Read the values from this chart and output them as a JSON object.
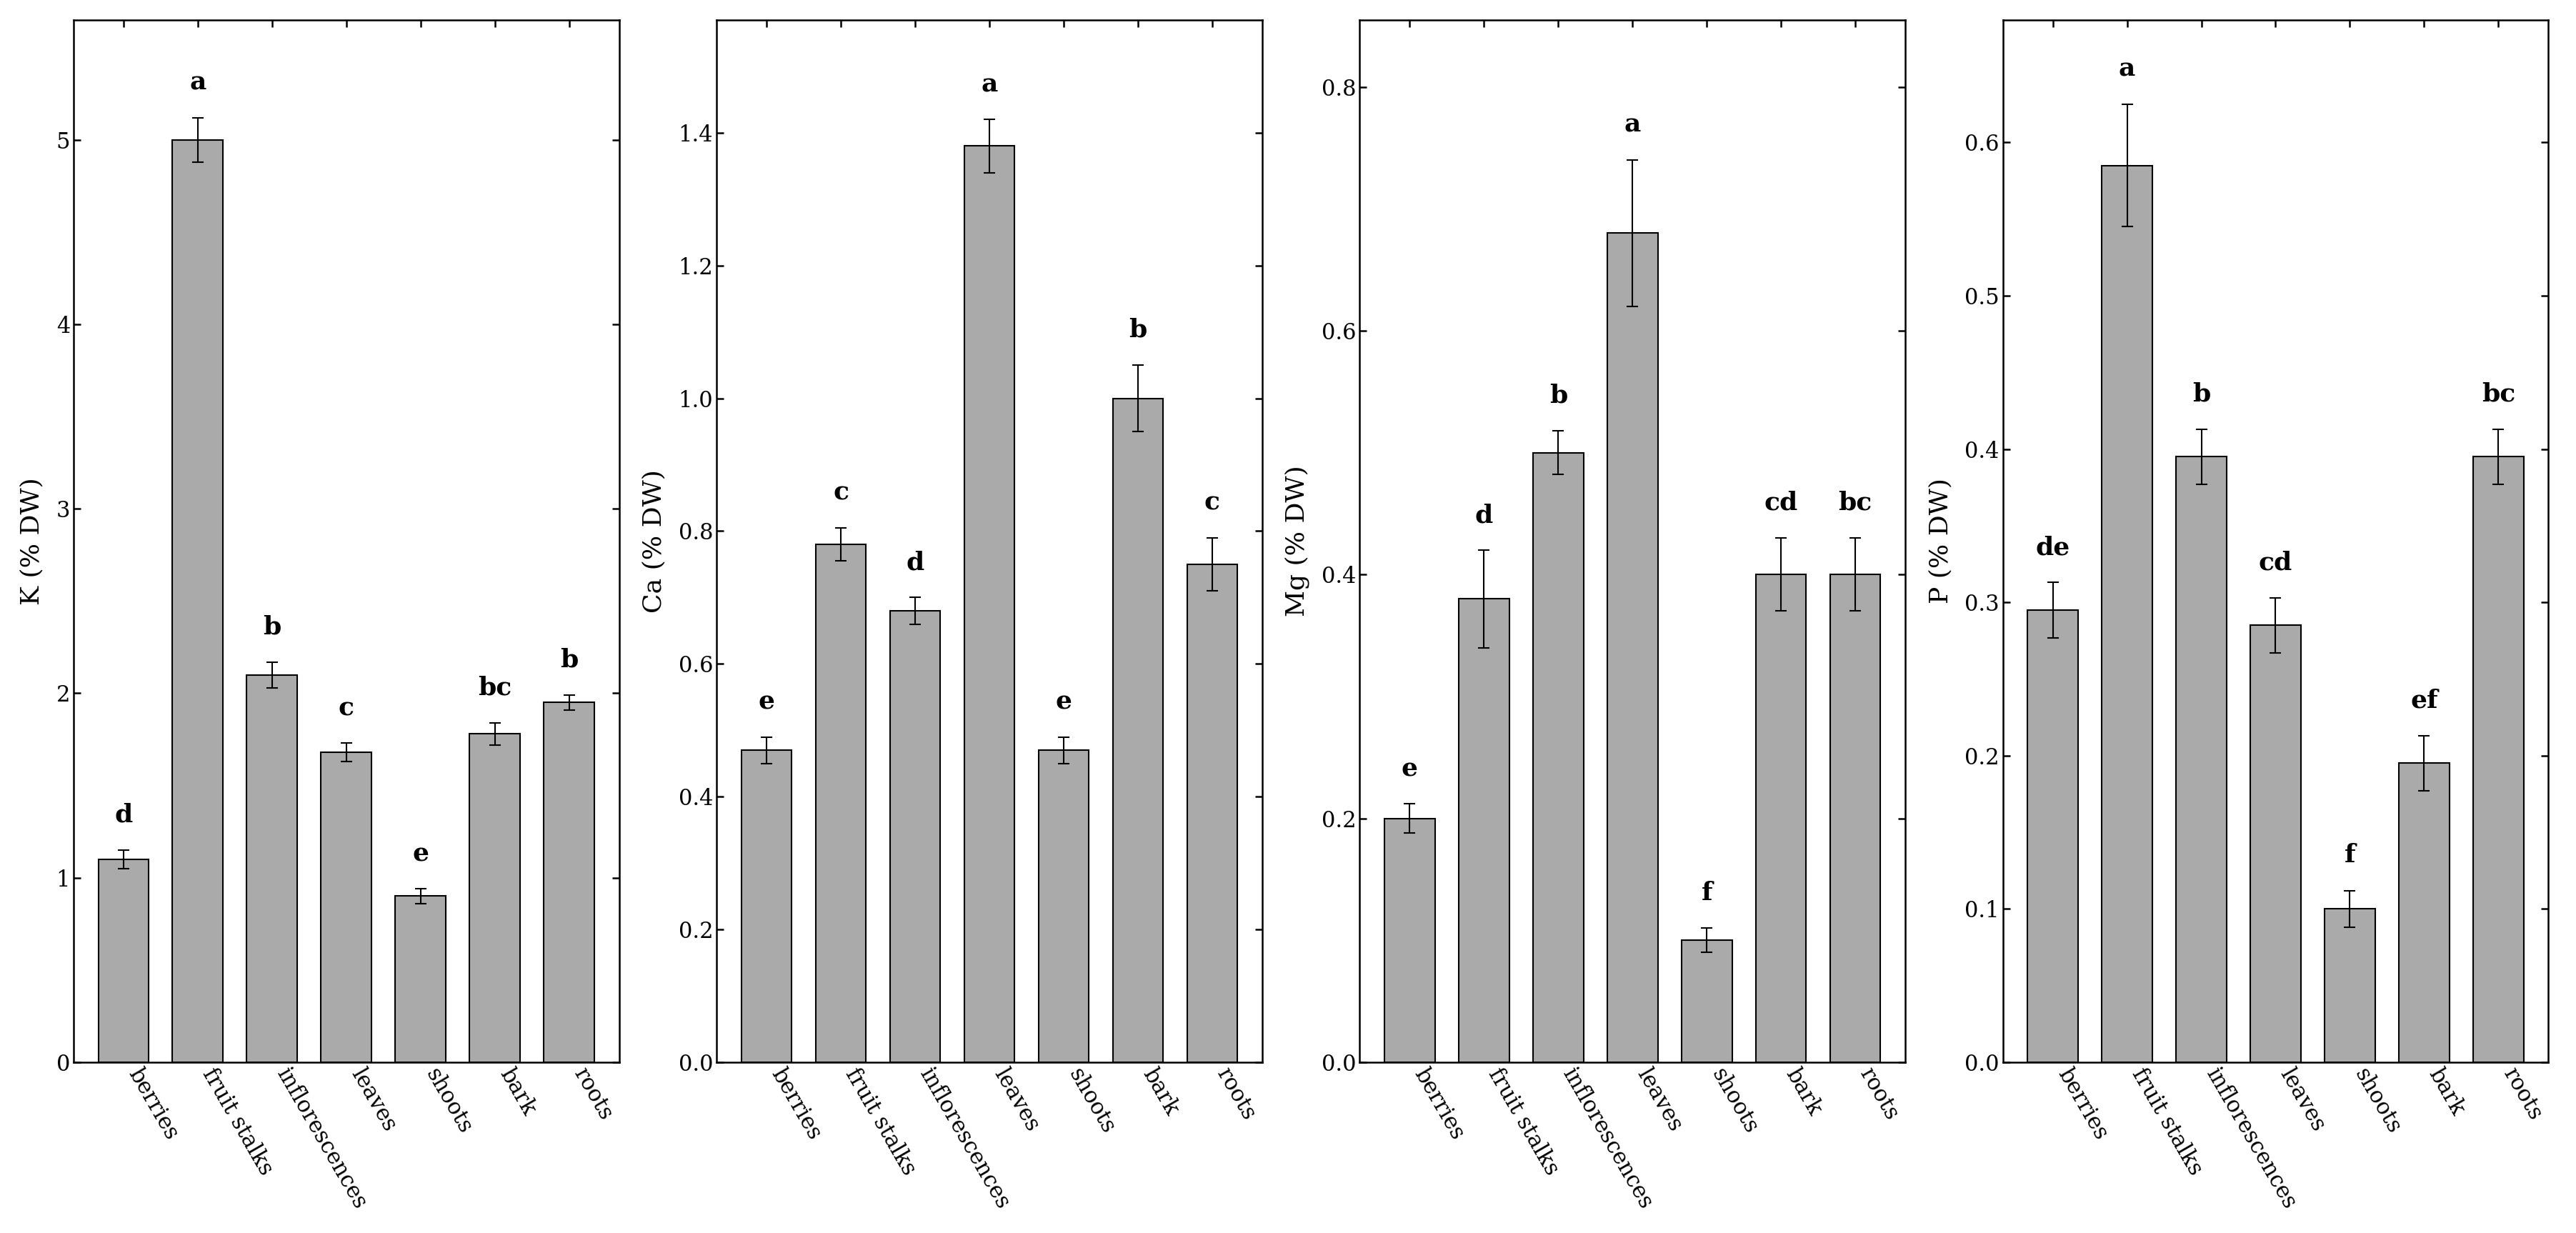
{
  "categories": [
    "berries",
    "fruit stalks",
    "inflorescences",
    "leaves",
    "shoots",
    "bark",
    "roots"
  ],
  "K": {
    "values": [
      1.1,
      5.0,
      2.1,
      1.68,
      0.9,
      1.78,
      1.95
    ],
    "errors": [
      0.05,
      0.12,
      0.07,
      0.05,
      0.04,
      0.06,
      0.04
    ],
    "labels": [
      "d",
      "a",
      "b",
      "c",
      "e",
      "bc",
      "b"
    ],
    "ylabel": "K (% DW)",
    "ylim": [
      0,
      5.65
    ],
    "yticks": [
      0,
      1,
      2,
      3,
      4,
      5
    ],
    "yticklabels": [
      "0",
      "1",
      "2",
      "3",
      "4",
      "5"
    ]
  },
  "Ca": {
    "values": [
      0.47,
      0.78,
      0.68,
      1.38,
      0.47,
      1.0,
      0.75
    ],
    "errors": [
      0.02,
      0.025,
      0.02,
      0.04,
      0.02,
      0.05,
      0.04
    ],
    "labels": [
      "e",
      "c",
      "d",
      "a",
      "e",
      "b",
      "c"
    ],
    "ylabel": "Ca (% DW)",
    "ylim": [
      0,
      1.57
    ],
    "yticks": [
      0.0,
      0.2,
      0.4,
      0.6,
      0.8,
      1.0,
      1.2,
      1.4
    ],
    "yticklabels": [
      "0.0",
      "0.2",
      "0.4",
      "0.6",
      "0.8",
      "1.0",
      "1.2",
      "1.4"
    ]
  },
  "Mg": {
    "values": [
      0.2,
      0.38,
      0.5,
      0.68,
      0.1,
      0.4,
      0.4
    ],
    "errors": [
      0.012,
      0.04,
      0.018,
      0.06,
      0.01,
      0.03,
      0.03
    ],
    "labels": [
      "e",
      "d",
      "b",
      "a",
      "f",
      "cd",
      "bc"
    ],
    "ylabel": "Mg (% DW)",
    "ylim": [
      0,
      0.855
    ],
    "yticks": [
      0.0,
      0.2,
      0.4,
      0.6,
      0.8
    ],
    "yticklabels": [
      "0.0",
      "0.2",
      "0.4",
      "0.6",
      "0.8"
    ]
  },
  "P": {
    "values": [
      0.295,
      0.585,
      0.395,
      0.285,
      0.1,
      0.195,
      0.395
    ],
    "errors": [
      0.018,
      0.04,
      0.018,
      0.018,
      0.012,
      0.018,
      0.018
    ],
    "labels": [
      "de",
      "a",
      "b",
      "cd",
      "f",
      "ef",
      "bc"
    ],
    "ylabel": "P (% DW)",
    "ylim": [
      0,
      0.68
    ],
    "yticks": [
      0.0,
      0.1,
      0.2,
      0.3,
      0.4,
      0.5,
      0.6
    ],
    "yticklabels": [
      "0.0",
      "0.1",
      "0.2",
      "0.3",
      "0.4",
      "0.5",
      "0.6"
    ]
  },
  "bar_color": "#aaaaaa",
  "bar_edge_color": "#000000",
  "bar_width": 0.68,
  "label_fontsize": 26,
  "tick_fontsize": 22,
  "letter_fontsize": 26,
  "xtick_fontsize": 22,
  "background_color": "#ffffff",
  "spine_linewidth": 1.8
}
